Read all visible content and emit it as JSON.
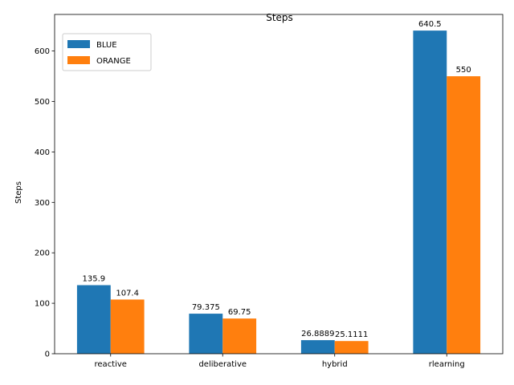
{
  "chart_data": {
    "type": "bar",
    "title": "Steps",
    "xlabel": "",
    "ylabel": "Steps",
    "categories": [
      "reactive",
      "deliberative",
      "hybrid",
      "rlearning"
    ],
    "series": [
      {
        "name": "BLUE",
        "color": "#1f77b4",
        "values": [
          135.9,
          79.375,
          26.8889,
          640.5
        ],
        "labels": [
          "135.9",
          "79.375",
          "26.8889",
          "640.5"
        ]
      },
      {
        "name": "ORANGE",
        "color": "#ff7f0e",
        "values": [
          107.4,
          69.75,
          25.1111,
          550
        ],
        "labels": [
          "107.4",
          "69.75",
          "25.1111",
          "550"
        ]
      }
    ],
    "ylim": [
      0,
      672.5
    ],
    "yticks": [
      0,
      100,
      200,
      300,
      400,
      500,
      600
    ],
    "grid": false,
    "legend_position": "top-left"
  }
}
